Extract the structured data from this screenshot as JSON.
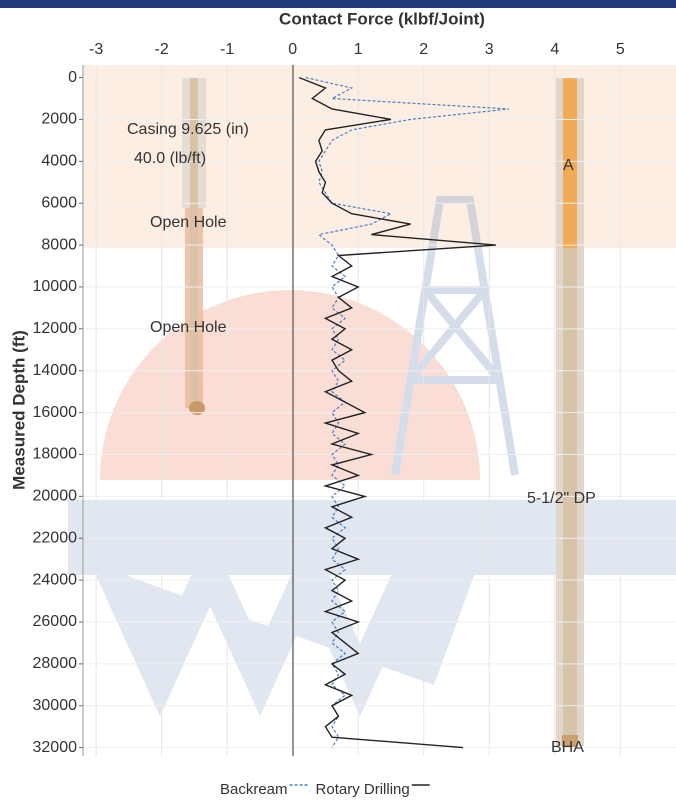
{
  "chart_data": {
    "type": "line",
    "title": "Contact Force (klbf/Joint)",
    "y_label": "Measured Depth (ft)",
    "depth": [
      0,
      500,
      1000,
      1500,
      2000,
      2500,
      3000,
      3500,
      4000,
      4500,
      5000,
      5500,
      6000,
      6500,
      7000,
      7500,
      8000,
      8500,
      9000,
      9500,
      10000,
      10500,
      11000,
      11500,
      12000,
      12500,
      13000,
      13500,
      14000,
      14500,
      15000,
      15500,
      16000,
      16500,
      17000,
      17500,
      18000,
      18500,
      19000,
      19500,
      20000,
      20500,
      21000,
      21500,
      22000,
      22500,
      23000,
      23500,
      24000,
      24500,
      25000,
      25500,
      26000,
      26500,
      27000,
      27500,
      28000,
      28500,
      29000,
      29500,
      30000,
      30500,
      31000,
      31500,
      32000
    ],
    "series": [
      {
        "name": "Backream",
        "color": "#4a7fc1",
        "dashed": true,
        "values": [
          0.2,
          0.9,
          0.6,
          3.3,
          1.8,
          0.9,
          0.6,
          0.5,
          0.4,
          0.45,
          0.4,
          0.5,
          0.6,
          1.5,
          1.2,
          0.4,
          0.6,
          0.7,
          0.6,
          0.8,
          0.6,
          0.7,
          0.6,
          0.8,
          0.6,
          0.7,
          0.6,
          0.8,
          0.6,
          0.7,
          0.6,
          0.8,
          0.6,
          0.7,
          0.6,
          0.8,
          0.6,
          0.7,
          0.6,
          0.8,
          0.6,
          0.7,
          0.6,
          0.8,
          0.6,
          0.7,
          0.6,
          0.8,
          0.6,
          0.7,
          0.6,
          0.8,
          0.6,
          0.7,
          0.6,
          0.8,
          0.6,
          0.7,
          0.6,
          0.8,
          0.6,
          0.7,
          0.6,
          0.7,
          0.6
        ]
      },
      {
        "name": "Rotary Drilling",
        "color": "#222222",
        "dashed": false,
        "values": [
          0.1,
          0.5,
          0.3,
          0.6,
          1.5,
          0.5,
          0.4,
          0.45,
          0.35,
          0.4,
          0.5,
          0.45,
          0.6,
          0.9,
          1.8,
          1.2,
          3.1,
          0.7,
          0.9,
          0.6,
          1.0,
          0.7,
          0.9,
          0.5,
          0.8,
          0.6,
          0.9,
          0.6,
          0.7,
          0.9,
          0.5,
          0.8,
          1.1,
          0.5,
          1.0,
          0.6,
          1.2,
          0.6,
          1.0,
          0.5,
          1.1,
          0.6,
          0.9,
          0.5,
          0.8,
          0.6,
          1.0,
          0.5,
          0.8,
          0.6,
          0.9,
          0.5,
          1.0,
          0.6,
          0.8,
          1.0,
          0.6,
          0.8,
          0.5,
          0.9,
          0.6,
          0.7,
          0.5,
          0.6,
          2.6
        ]
      }
    ],
    "xlim": [
      -3.2,
      5.85
    ],
    "xticks": [
      -3,
      -2,
      -1,
      0,
      1,
      2,
      3,
      4,
      5
    ],
    "ylim": [
      -600,
      32400
    ],
    "yticks": [
      0,
      2000,
      4000,
      6000,
      8000,
      10000,
      12000,
      14000,
      16000,
      18000,
      20000,
      22000,
      24000,
      26000,
      28000,
      30000,
      32000
    ],
    "y_inverted": true,
    "grid": true,
    "annotations": [
      "Casing 9.625 (in)",
      "40.0 (lb/ft)",
      "Open Hole",
      "Open Hole",
      "A",
      "5-1/2\" DP",
      "BHA"
    ]
  }
}
